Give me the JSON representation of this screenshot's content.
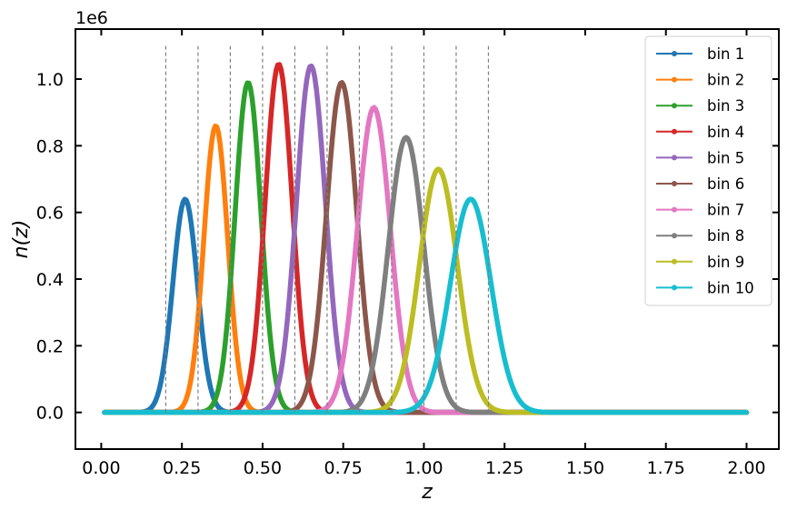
{
  "chart_data": {
    "type": "line",
    "xlabel": "z",
    "ylabel": "n(z)",
    "y_offset_text": "1e6",
    "xlim": [
      -0.08,
      2.1
    ],
    "ylim": [
      -0.11,
      1.15
    ],
    "x_ticks": [
      "0.00",
      "0.25",
      "0.50",
      "0.75",
      "1.00",
      "1.25",
      "1.50",
      "1.75",
      "2.00"
    ],
    "y_ticks": [
      "0.0",
      "0.2",
      "0.4",
      "0.6",
      "0.8",
      "1.0"
    ],
    "x_domain": [
      0.01,
      2.0
    ],
    "grid": false,
    "legend_placement": "top-right",
    "bin_edges": [
      0.2,
      0.3,
      0.4,
      0.5,
      0.6,
      0.7,
      0.8,
      0.9,
      1.0,
      1.1,
      1.2
    ],
    "bin_edge_line_range": [
      0.0,
      1.1
    ],
    "bin_edge_color": "#7f7f7f",
    "series": [
      {
        "name": "bin 1",
        "color": "#1f77b4",
        "peak_z": 0.26,
        "peak_n": 0.64,
        "sigma": 0.038
      },
      {
        "name": "bin 2",
        "color": "#ff7f0e",
        "peak_z": 0.355,
        "peak_n": 0.86,
        "sigma": 0.037
      },
      {
        "name": "bin 3",
        "color": "#2ca02c",
        "peak_z": 0.455,
        "peak_n": 0.99,
        "sigma": 0.04
      },
      {
        "name": "bin 4",
        "color": "#d62728",
        "peak_z": 0.55,
        "peak_n": 1.045,
        "sigma": 0.042
      },
      {
        "name": "bin 5",
        "color": "#9467bd",
        "peak_z": 0.65,
        "peak_n": 1.04,
        "sigma": 0.045
      },
      {
        "name": "bin 6",
        "color": "#8c564b",
        "peak_z": 0.745,
        "peak_n": 0.99,
        "sigma": 0.047
      },
      {
        "name": "bin 7",
        "color": "#e377c2",
        "peak_z": 0.845,
        "peak_n": 0.915,
        "sigma": 0.051
      },
      {
        "name": "bin 8",
        "color": "#7f7f7f",
        "peak_z": 0.945,
        "peak_n": 0.825,
        "sigma": 0.055
      },
      {
        "name": "bin 9",
        "color": "#bcbd22",
        "peak_z": 1.045,
        "peak_n": 0.73,
        "sigma": 0.059
      },
      {
        "name": "bin 10",
        "color": "#17becf",
        "peak_z": 1.145,
        "peak_n": 0.64,
        "sigma": 0.063
      }
    ]
  }
}
